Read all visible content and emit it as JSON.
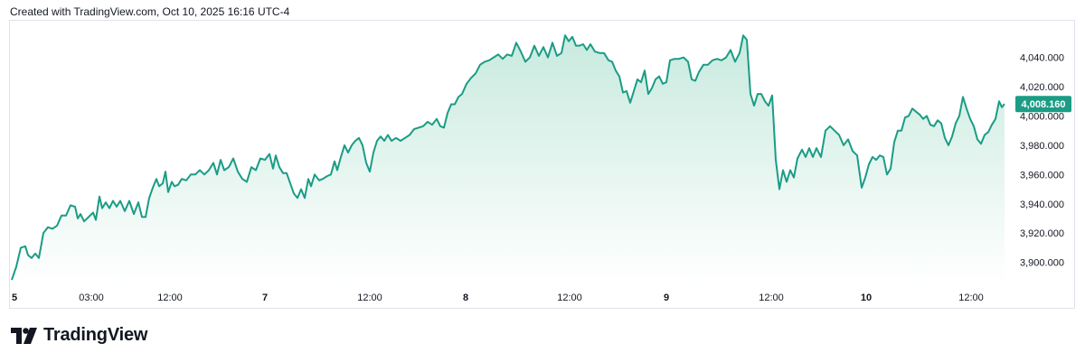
{
  "header": {
    "credit": "Created with TradingView.com, Oct 10, 2025 16:16 UTC-4"
  },
  "footer": {
    "brand": "TradingView"
  },
  "colors": {
    "line": "#1b9c85",
    "fill_top": "#c8eadf",
    "fill_bottom": "#ffffff",
    "tag": "#1b9c85",
    "grid_border": "#e0e3eb"
  },
  "chart_data": {
    "type": "area",
    "ylim": [
      3885,
      4065
    ],
    "yticks": [
      3900,
      3920,
      3940,
      3960,
      3980,
      4000,
      4020,
      4040
    ],
    "ytick_labels": [
      "3,900.000",
      "3,920.000",
      "3,940.000",
      "3,960.000",
      "3,980.000",
      "4,000.000",
      "4,020.000",
      "4,040.000"
    ],
    "last_price_label": "4,008.160",
    "last_price": 4008.16,
    "xlim": [
      0,
      1098
    ],
    "xticks": [
      {
        "x": 0,
        "label": "5",
        "bold": true
      },
      {
        "x": 88,
        "label": "03:00",
        "bold": false
      },
      {
        "x": 175,
        "label": "12:00",
        "bold": false
      },
      {
        "x": 280,
        "label": "7",
        "bold": true
      },
      {
        "x": 396,
        "label": "12:00",
        "bold": false
      },
      {
        "x": 502,
        "label": "8",
        "bold": true
      },
      {
        "x": 617,
        "label": "12:00",
        "bold": false
      },
      {
        "x": 724,
        "label": "9",
        "bold": true
      },
      {
        "x": 840,
        "label": "12:00",
        "bold": false
      },
      {
        "x": 945,
        "label": "10",
        "bold": true
      },
      {
        "x": 1061,
        "label": "12:00",
        "bold": false
      }
    ],
    "series": [
      {
        "points": [
          [
            0,
            3888
          ],
          [
            5,
            3897
          ],
          [
            10,
            3910
          ],
          [
            15,
            3911
          ],
          [
            18,
            3905
          ],
          [
            22,
            3903
          ],
          [
            26,
            3906
          ],
          [
            30,
            3903
          ],
          [
            35,
            3920
          ],
          [
            40,
            3924
          ],
          [
            45,
            3923
          ],
          [
            50,
            3925
          ],
          [
            55,
            3932
          ],
          [
            60,
            3932
          ],
          [
            65,
            3939
          ],
          [
            70,
            3938
          ],
          [
            73,
            3930
          ],
          [
            76,
            3933
          ],
          [
            80,
            3928
          ],
          [
            85,
            3931
          ],
          [
            90,
            3934
          ],
          [
            93,
            3929
          ],
          [
            97,
            3945
          ],
          [
            100,
            3937
          ],
          [
            104,
            3941
          ],
          [
            108,
            3937
          ],
          [
            112,
            3942
          ],
          [
            116,
            3938
          ],
          [
            120,
            3942
          ],
          [
            125,
            3935
          ],
          [
            130,
            3942
          ],
          [
            135,
            3933
          ],
          [
            140,
            3941
          ],
          [
            144,
            3931
          ],
          [
            148,
            3931
          ],
          [
            152,
            3944
          ],
          [
            156,
            3951
          ],
          [
            160,
            3957
          ],
          [
            163,
            3952
          ],
          [
            167,
            3954
          ],
          [
            170,
            3962
          ],
          [
            173,
            3948
          ],
          [
            177,
            3955
          ],
          [
            180,
            3952
          ],
          [
            184,
            3953
          ],
          [
            188,
            3957
          ],
          [
            193,
            3956
          ],
          [
            198,
            3960
          ],
          [
            203,
            3960
          ],
          [
            208,
            3963
          ],
          [
            213,
            3960
          ],
          [
            218,
            3963
          ],
          [
            223,
            3968
          ],
          [
            227,
            3960
          ],
          [
            231,
            3970
          ],
          [
            235,
            3963
          ],
          [
            240,
            3965
          ],
          [
            245,
            3971
          ],
          [
            250,
            3962
          ],
          [
            255,
            3957
          ],
          [
            260,
            3955
          ],
          [
            265,
            3965
          ],
          [
            270,
            3963
          ],
          [
            275,
            3971
          ],
          [
            280,
            3970
          ],
          [
            285,
            3974
          ],
          [
            289,
            3964
          ],
          [
            292,
            3973
          ],
          [
            296,
            3965
          ],
          [
            300,
            3961
          ],
          [
            304,
            3961
          ],
          [
            308,
            3954
          ],
          [
            312,
            3947
          ],
          [
            316,
            3944
          ],
          [
            320,
            3950
          ],
          [
            324,
            3944
          ],
          [
            328,
            3957
          ],
          [
            331,
            3952
          ],
          [
            335,
            3960
          ],
          [
            340,
            3956
          ],
          [
            344,
            3957
          ],
          [
            349,
            3959
          ],
          [
            353,
            3960
          ],
          [
            357,
            3969
          ],
          [
            360,
            3963
          ],
          [
            364,
            3972
          ],
          [
            368,
            3980
          ],
          [
            372,
            3975
          ],
          [
            376,
            3980
          ],
          [
            380,
            3983
          ],
          [
            384,
            3985
          ],
          [
            388,
            3980
          ],
          [
            392,
            3968
          ],
          [
            396,
            3962
          ],
          [
            400,
            3975
          ],
          [
            404,
            3983
          ],
          [
            408,
            3986
          ],
          [
            412,
            3983
          ],
          [
            416,
            3987
          ],
          [
            420,
            3983
          ],
          [
            425,
            3985
          ],
          [
            430,
            3983
          ],
          [
            435,
            3985
          ],
          [
            440,
            3987
          ],
          [
            445,
            3991
          ],
          [
            450,
            3992
          ],
          [
            455,
            3993
          ],
          [
            460,
            3996
          ],
          [
            465,
            3994
          ],
          [
            470,
            3998
          ],
          [
            474,
            3993
          ],
          [
            478,
            3992
          ],
          [
            482,
            4002
          ],
          [
            486,
            4008
          ],
          [
            490,
            4008
          ],
          [
            494,
            4013
          ],
          [
            498,
            4015
          ],
          [
            503,
            4022
          ],
          [
            508,
            4026
          ],
          [
            513,
            4029
          ],
          [
            518,
            4035
          ],
          [
            523,
            4037
          ],
          [
            528,
            4038
          ],
          [
            533,
            4040
          ],
          [
            538,
            4042
          ],
          [
            543,
            4039
          ],
          [
            548,
            4042
          ],
          [
            553,
            4041
          ],
          [
            558,
            4050
          ],
          [
            563,
            4044
          ],
          [
            568,
            4037
          ],
          [
            573,
            4040
          ],
          [
            578,
            4048
          ],
          [
            583,
            4041
          ],
          [
            588,
            4047
          ],
          [
            593,
            4040
          ],
          [
            598,
            4050
          ],
          [
            603,
            4041
          ],
          [
            608,
            4043
          ],
          [
            612,
            4055
          ],
          [
            616,
            4051
          ],
          [
            620,
            4054
          ],
          [
            624,
            4048
          ],
          [
            628,
            4048
          ],
          [
            632,
            4049
          ],
          [
            636,
            4045
          ],
          [
            640,
            4049
          ],
          [
            645,
            4044
          ],
          [
            650,
            4043
          ],
          [
            655,
            4043
          ],
          [
            660,
            4038
          ],
          [
            664,
            4037
          ],
          [
            668,
            4031
          ],
          [
            672,
            4027
          ],
          [
            676,
            4016
          ],
          [
            680,
            4017
          ],
          [
            684,
            4009
          ],
          [
            688,
            4017
          ],
          [
            692,
            4025
          ],
          [
            696,
            4023
          ],
          [
            700,
            4031
          ],
          [
            704,
            4015
          ],
          [
            708,
            4019
          ],
          [
            712,
            4025
          ],
          [
            716,
            4027
          ],
          [
            720,
            4022
          ],
          [
            724,
            4023
          ],
          [
            728,
            4038
          ],
          [
            733,
            4039
          ],
          [
            738,
            4039
          ],
          [
            743,
            4040
          ],
          [
            748,
            4037
          ],
          [
            752,
            4025
          ],
          [
            756,
            4024
          ],
          [
            760,
            4030
          ],
          [
            765,
            4035
          ],
          [
            770,
            4035
          ],
          [
            775,
            4038
          ],
          [
            780,
            4039
          ],
          [
            785,
            4038
          ],
          [
            790,
            4040
          ],
          [
            795,
            4045
          ],
          [
            800,
            4037
          ],
          [
            805,
            4043
          ],
          [
            809,
            4055
          ],
          [
            813,
            4052
          ],
          [
            817,
            4015
          ],
          [
            821,
            4007
          ],
          [
            825,
            4015
          ],
          [
            829,
            4015
          ],
          [
            833,
            4010
          ],
          [
            837,
            4007
          ],
          [
            841,
            4014
          ],
          [
            845,
            3970
          ],
          [
            849,
            3950
          ],
          [
            853,
            3963
          ],
          [
            857,
            3955
          ],
          [
            861,
            3963
          ],
          [
            865,
            3958
          ],
          [
            869,
            3971
          ],
          [
            874,
            3977
          ],
          [
            878,
            3972
          ],
          [
            882,
            3978
          ],
          [
            886,
            3972
          ],
          [
            890,
            3978
          ],
          [
            895,
            3972
          ],
          [
            900,
            3990
          ],
          [
            905,
            3993
          ],
          [
            910,
            3990
          ],
          [
            915,
            3987
          ],
          [
            920,
            3980
          ],
          [
            925,
            3984
          ],
          [
            930,
            3976
          ],
          [
            935,
            3973
          ],
          [
            940,
            3951
          ],
          [
            944,
            3958
          ],
          [
            948,
            3967
          ],
          [
            952,
            3972
          ],
          [
            956,
            3970
          ],
          [
            960,
            3973
          ],
          [
            964,
            3972
          ],
          [
            968,
            3960
          ],
          [
            972,
            3964
          ],
          [
            976,
            3982
          ],
          [
            980,
            3990
          ],
          [
            984,
            3990
          ],
          [
            988,
            3999
          ],
          [
            992,
            4000
          ],
          [
            996,
            4005
          ],
          [
            1000,
            4003
          ],
          [
            1004,
            4001
          ],
          [
            1008,
            3998
          ],
          [
            1012,
            4000
          ],
          [
            1016,
            3994
          ],
          [
            1020,
            3993
          ],
          [
            1024,
            3997
          ],
          [
            1028,
            3995
          ],
          [
            1032,
            3985
          ],
          [
            1036,
            3980
          ],
          [
            1040,
            3986
          ],
          [
            1044,
            3995
          ],
          [
            1048,
            4000
          ],
          [
            1052,
            4013
          ],
          [
            1056,
            4005
          ],
          [
            1060,
            3998
          ],
          [
            1064,
            3993
          ],
          [
            1068,
            3984
          ],
          [
            1072,
            3981
          ],
          [
            1076,
            3987
          ],
          [
            1080,
            3989
          ],
          [
            1084,
            3994
          ],
          [
            1088,
            3998
          ],
          [
            1092,
            4010
          ],
          [
            1095,
            4006
          ],
          [
            1098,
            4008.16
          ]
        ]
      }
    ]
  }
}
